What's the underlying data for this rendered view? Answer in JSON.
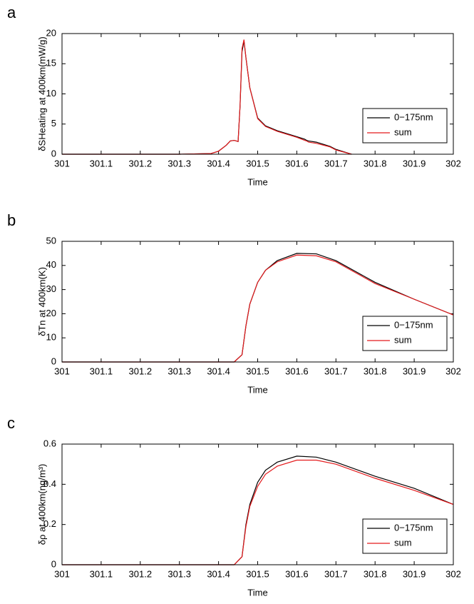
{
  "chart_data": [
    {
      "type": "line",
      "panel_label": "a",
      "x_label": "Time",
      "y_label": "δSHeating at 400km(mW/g)",
      "x": [
        301,
        301.1,
        301.2,
        301.3,
        301.38,
        301.4,
        301.42,
        301.43,
        301.44,
        301.45,
        301.455,
        301.46,
        301.465,
        301.47,
        301.48,
        301.5,
        301.52,
        301.55,
        301.6,
        301.62,
        301.625,
        301.63,
        301.65,
        301.68,
        301.685,
        301.7,
        301.74
      ],
      "series": [
        {
          "name": "0−175nm",
          "color": "#000000",
          "values": [
            0,
            0,
            0,
            0,
            0.1,
            0.5,
            1.5,
            2.2,
            2.3,
            2.1,
            8,
            17,
            18.8,
            16,
            11,
            6,
            4.7,
            3.9,
            2.9,
            2.5,
            2.3,
            2.2,
            2.0,
            1.4,
            1.3,
            0.8,
            0
          ]
        },
        {
          "name": "sum",
          "color": "#e41a1c",
          "values": [
            0,
            0,
            0,
            0,
            0.1,
            0.5,
            1.5,
            2.2,
            2.3,
            2.1,
            8,
            17.5,
            19,
            16,
            11,
            5.9,
            4.6,
            3.8,
            2.8,
            2.3,
            2.2,
            2.0,
            1.8,
            1.3,
            1.2,
            0.7,
            0
          ]
        }
      ],
      "xlim": [
        301,
        302
      ],
      "xticks": [
        301,
        301.1,
        301.2,
        301.3,
        301.4,
        301.5,
        301.6,
        301.7,
        301.8,
        301.9,
        302
      ],
      "ylim": [
        0,
        20
      ],
      "yticks": [
        0,
        5,
        10,
        15,
        20
      ],
      "legend": "lower right"
    },
    {
      "type": "line",
      "panel_label": "b",
      "x_label": "Time",
      "y_label": "δTn at 400km(K)",
      "x": [
        301,
        301.44,
        301.46,
        301.47,
        301.48,
        301.5,
        301.52,
        301.55,
        301.6,
        301.65,
        301.7,
        301.8,
        301.9,
        302
      ],
      "series": [
        {
          "name": "0−175nm",
          "color": "#000000",
          "values": [
            0,
            0,
            3,
            15,
            24,
            33,
            38,
            42,
            45,
            44.8,
            42,
            33,
            26,
            19.5
          ]
        },
        {
          "name": "sum",
          "color": "#e41a1c",
          "values": [
            0,
            0,
            3,
            15,
            24,
            33,
            38,
            41.5,
            44.3,
            44,
            41.5,
            32.5,
            26,
            19.5
          ]
        }
      ],
      "xlim": [
        301,
        302
      ],
      "xticks": [
        301,
        301.1,
        301.2,
        301.3,
        301.4,
        301.5,
        301.6,
        301.7,
        301.8,
        301.9,
        302
      ],
      "ylim": [
        0,
        50
      ],
      "yticks": [
        0,
        10,
        20,
        30,
        40,
        50
      ],
      "legend": "lower right"
    },
    {
      "type": "line",
      "panel_label": "c",
      "x_label": "Time",
      "y_label": "δρ at 400km(ng/m³)",
      "x": [
        301,
        301.44,
        301.46,
        301.47,
        301.48,
        301.5,
        301.52,
        301.55,
        301.6,
        301.65,
        301.7,
        301.8,
        301.9,
        302
      ],
      "series": [
        {
          "name": "0−175nm",
          "color": "#000000",
          "values": [
            0,
            0,
            0.04,
            0.2,
            0.3,
            0.41,
            0.47,
            0.51,
            0.54,
            0.535,
            0.51,
            0.44,
            0.38,
            0.3
          ]
        },
        {
          "name": "sum",
          "color": "#e41a1c",
          "values": [
            0,
            0,
            0.04,
            0.19,
            0.29,
            0.39,
            0.45,
            0.49,
            0.52,
            0.52,
            0.5,
            0.43,
            0.37,
            0.3
          ]
        }
      ],
      "xlim": [
        301,
        302
      ],
      "xticks": [
        301,
        301.1,
        301.2,
        301.3,
        301.4,
        301.5,
        301.6,
        301.7,
        301.8,
        301.9,
        302
      ],
      "ylim": [
        0,
        0.6
      ],
      "yticks": [
        0,
        0.2,
        0.4,
        0.6
      ],
      "legend": "lower right"
    }
  ]
}
